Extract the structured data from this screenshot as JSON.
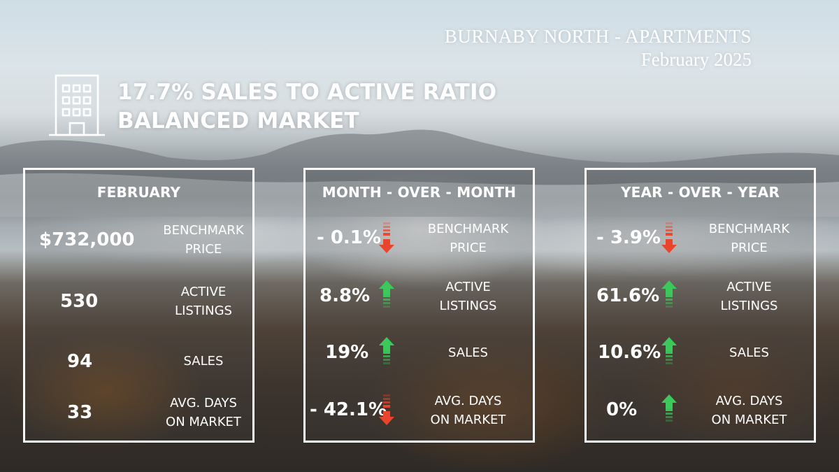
{
  "header": {
    "area": "BURNABY NORTH - APARTMENTS",
    "period": "February 2025"
  },
  "summary": {
    "ratio": "17.7% SALES TO ACTIVE RATIO",
    "market": "BALANCED MARKET",
    "icon": "building-icon"
  },
  "panels": [
    {
      "title": "FEBRUARY",
      "rows": [
        {
          "value": "$732,000",
          "label1": "BENCHMARK",
          "label2": "PRICE"
        },
        {
          "value": "530",
          "label1": "ACTIVE",
          "label2": "LISTINGS"
        },
        {
          "value": "94",
          "label1": "SALES",
          "label2": ""
        },
        {
          "value": "33",
          "label1": "AVG. DAYS",
          "label2": "ON MARKET"
        }
      ]
    },
    {
      "title": "MONTH - OVER - MONTH",
      "rows": [
        {
          "value": "- 0.1%",
          "label1": "BENCHMARK",
          "label2": "PRICE",
          "trend": "down"
        },
        {
          "value": "8.8%",
          "label1": "ACTIVE",
          "label2": "LISTINGS",
          "trend": "up"
        },
        {
          "value": "19%",
          "label1": "SALES",
          "label2": "",
          "trend": "up"
        },
        {
          "value": "- 42.1%",
          "label1": "AVG. DAYS",
          "label2": "ON MARKET",
          "trend": "down"
        }
      ]
    },
    {
      "title": "YEAR - OVER - YEAR",
      "rows": [
        {
          "value": "- 3.9%",
          "label1": "BENCHMARK",
          "label2": "PRICE",
          "trend": "down"
        },
        {
          "value": "61.6%",
          "label1": "ACTIVE",
          "label2": "LISTINGS",
          "trend": "up"
        },
        {
          "value": "10.6%",
          "label1": "SALES",
          "label2": "",
          "trend": "up"
        },
        {
          "value": "0%",
          "label1": "AVG. DAYS",
          "label2": "ON MARKET",
          "trend": "up"
        }
      ]
    }
  ],
  "colors": {
    "up": "#3cc85a",
    "down": "#e8452c"
  }
}
